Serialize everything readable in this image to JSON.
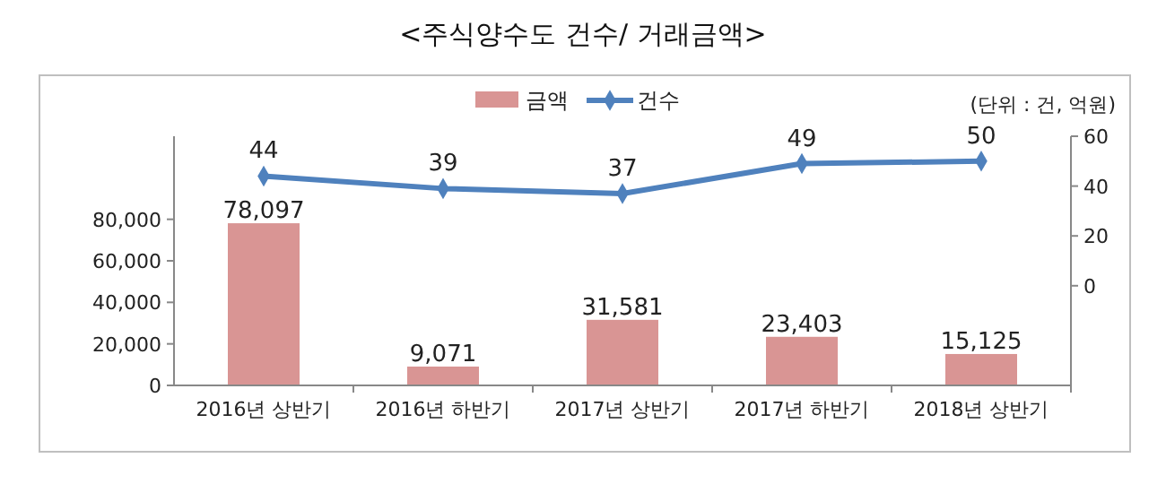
{
  "chart_data": {
    "type": "bar",
    "title": "<주식양수도 건수/ 거래금액>",
    "annotations": [
      "(단위 : 건, 억원)"
    ],
    "categories": [
      "2016년 상반기",
      "2016년 하반기",
      "2017년 상반기",
      "2017년 하반기",
      "2018년 상반기"
    ],
    "series": [
      {
        "name": "금액",
        "color": "#d99594",
        "values": [
          78097,
          9071,
          31581,
          23403,
          15125
        ],
        "value_labels": [
          "78,097",
          "9,071",
          "31,581",
          "23,403",
          "15,125"
        ]
      },
      {
        "name": "건수",
        "type": "line",
        "axis": "y2",
        "color": "#4f81bd",
        "values": [
          44,
          39,
          37,
          49,
          50
        ]
      }
    ],
    "ylim": [
      0,
      120000
    ],
    "yticks": [
      {
        "value": 0,
        "label": "0"
      },
      {
        "value": 20000,
        "label": "20,000"
      },
      {
        "value": 40000,
        "label": "40,000"
      },
      {
        "value": 60000,
        "label": "60,000"
      },
      {
        "value": 80000,
        "label": "80,000"
      }
    ],
    "y2lim": [
      -40,
      60
    ],
    "y2ticks": [
      0,
      20,
      40,
      60
    ],
    "data_labels": true,
    "legend": "top",
    "marker": "diamond",
    "grid": false
  }
}
